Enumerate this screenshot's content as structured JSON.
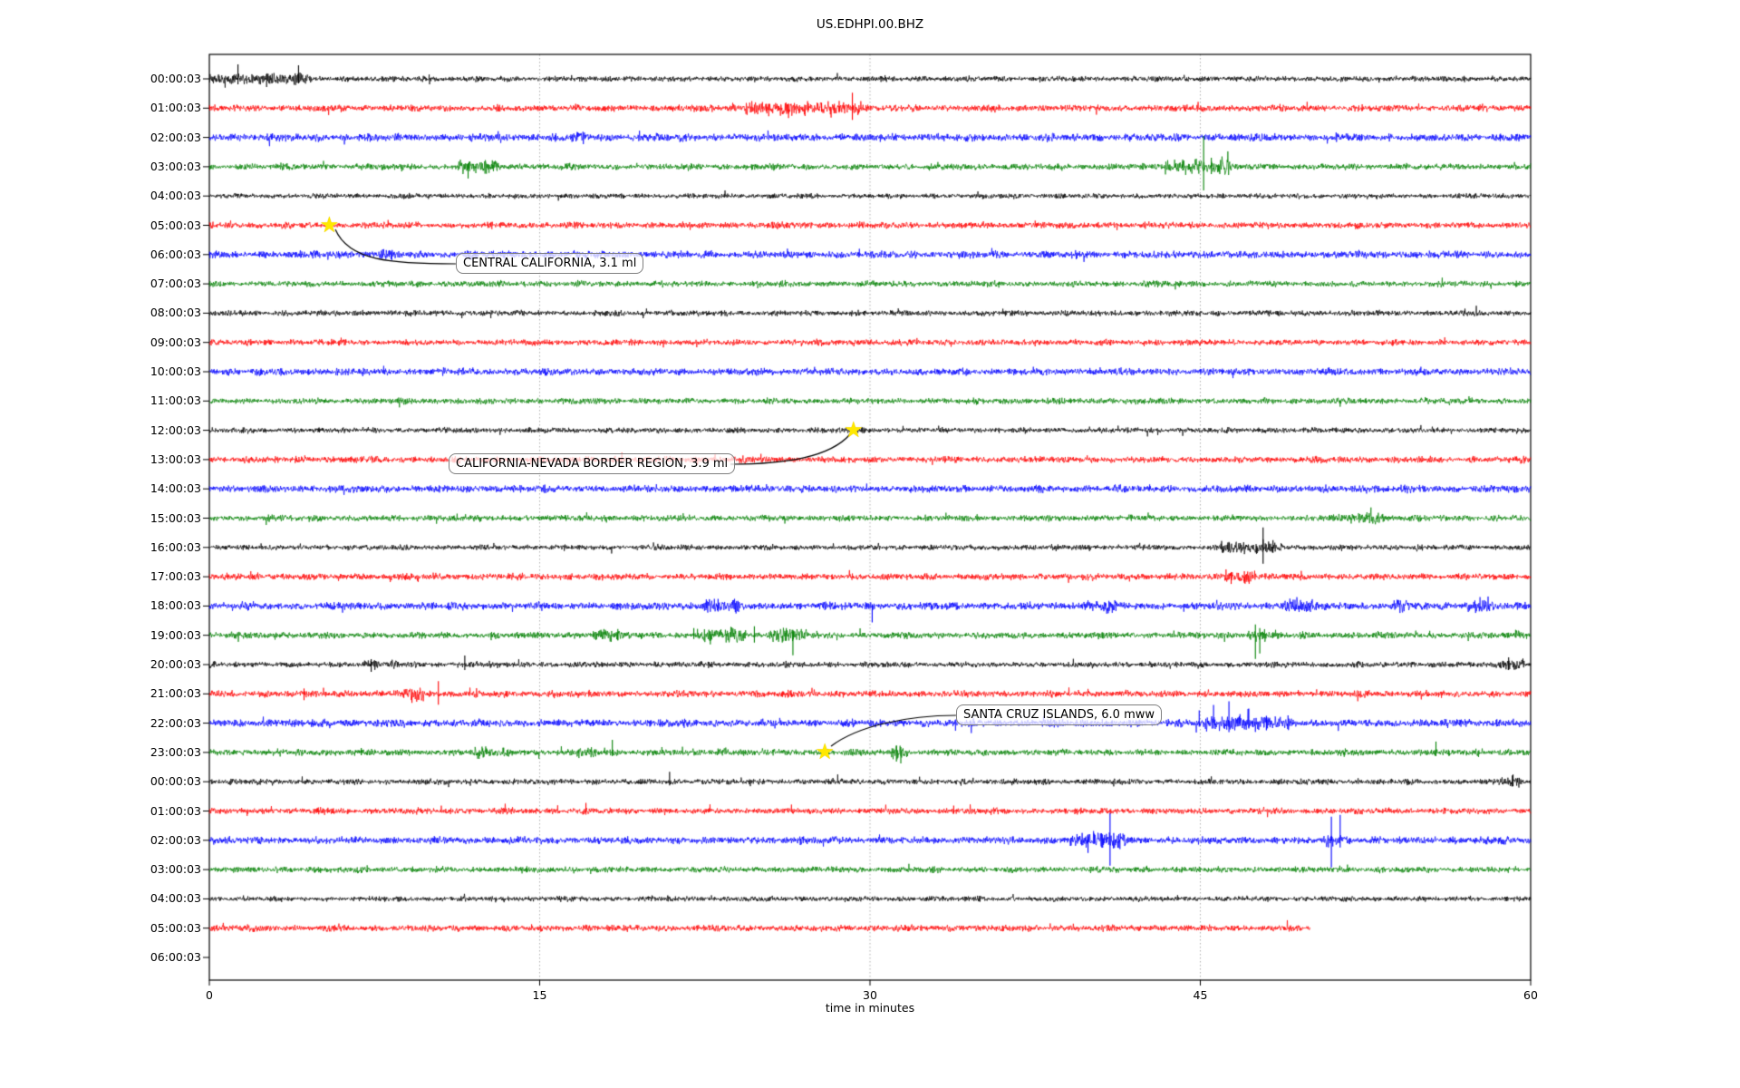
{
  "title": "US.EDHPI.00.BHZ",
  "chart_data": {
    "type": "line",
    "subtype": "seismogram-helicorder-dayplot",
    "station_code": "US.EDHPI.00.BHZ",
    "grid": "vertical-dotted",
    "star_glyph": "★",
    "star_color": "#ffe800",
    "x_axis": {
      "label": "time in minutes",
      "ticks": [
        0,
        15,
        30,
        45,
        60
      ],
      "xlim": [
        0,
        60
      ]
    },
    "trace_colors_cycle": [
      "#000000",
      "#ff0000",
      "#0000ff",
      "#008000"
    ],
    "rows": [
      {
        "label": "00:00:03",
        "color": "#000000",
        "amp": 2.4,
        "end": 60,
        "bursts": [
          [
            0,
            4.6,
            2.2
          ]
        ],
        "spikes": [
          [
            1.3,
            16,
            6
          ],
          [
            2.6,
            5,
            9
          ],
          [
            4.05,
            15,
            5
          ]
        ]
      },
      {
        "label": "01:00:03",
        "color": "#ff0000",
        "amp": 2.9,
        "end": 60,
        "bursts": [
          [
            24.3,
            29.6,
            2.2
          ]
        ],
        "spikes": [
          [
            25.4,
            4,
            9
          ],
          [
            26.3,
            5,
            11
          ],
          [
            27.8,
            6,
            4
          ],
          [
            28.6,
            8,
            5
          ],
          [
            29.2,
            17,
            13
          ]
        ]
      },
      {
        "label": "02:00:03",
        "color": "#0000ff",
        "amp": 3.3,
        "end": 60,
        "bursts": [
          [
            16.4,
            17.2,
            1.6
          ]
        ],
        "spikes": [
          [
            16.7,
            6,
            3
          ]
        ]
      },
      {
        "label": "03:00:03",
        "color": "#008000",
        "amp": 2.7,
        "end": 60,
        "bursts": [
          [
            11.3,
            13.2,
            1.9
          ],
          [
            43.4,
            46.4,
            2.6
          ]
        ],
        "spikes": [
          [
            11.75,
            4,
            13
          ],
          [
            12.1,
            3,
            7
          ],
          [
            44.2,
            8,
            4
          ],
          [
            45.15,
            34,
            26
          ],
          [
            45.5,
            10,
            8
          ]
        ]
      },
      {
        "label": "04:00:03",
        "color": "#000000",
        "amp": 2.2,
        "end": 60,
        "bursts": [],
        "spikes": []
      },
      {
        "label": "05:00:03",
        "color": "#ff0000",
        "amp": 2.8,
        "end": 60,
        "bursts": [],
        "spikes": []
      },
      {
        "label": "06:00:03",
        "color": "#0000ff",
        "amp": 3.2,
        "end": 60,
        "bursts": [
          [
            7.7,
            8.4,
            1.7
          ]
        ],
        "spikes": []
      },
      {
        "label": "07:00:03",
        "color": "#008000",
        "amp": 2.6,
        "end": 60,
        "bursts": [],
        "spikes": []
      },
      {
        "label": "08:00:03",
        "color": "#000000",
        "amp": 2.5,
        "end": 60,
        "bursts": [],
        "spikes": []
      },
      {
        "label": "09:00:03",
        "color": "#ff0000",
        "amp": 2.6,
        "end": 60,
        "bursts": [],
        "spikes": []
      },
      {
        "label": "10:00:03",
        "color": "#0000ff",
        "amp": 3.1,
        "end": 60,
        "bursts": [],
        "spikes": []
      },
      {
        "label": "11:00:03",
        "color": "#008000",
        "amp": 2.6,
        "end": 60,
        "bursts": [],
        "spikes": []
      },
      {
        "label": "12:00:03",
        "color": "#000000",
        "amp": 2.4,
        "end": 60,
        "bursts": [],
        "spikes": []
      },
      {
        "label": "13:00:03",
        "color": "#ff0000",
        "amp": 2.8,
        "end": 60,
        "bursts": [],
        "spikes": []
      },
      {
        "label": "14:00:03",
        "color": "#0000ff",
        "amp": 3.2,
        "end": 60,
        "bursts": [],
        "spikes": []
      },
      {
        "label": "15:00:03",
        "color": "#008000",
        "amp": 2.7,
        "end": 60,
        "bursts": [
          [
            51.7,
            53.3,
            2.2
          ]
        ],
        "spikes": []
      },
      {
        "label": "16:00:03",
        "color": "#000000",
        "amp": 2.4,
        "end": 60,
        "bursts": [
          [
            45.9,
            48.8,
            2.3
          ]
        ],
        "spikes": [
          [
            46.3,
            6,
            4
          ],
          [
            47.85,
            22,
            18
          ],
          [
            48.3,
            8,
            6
          ]
        ]
      },
      {
        "label": "17:00:03",
        "color": "#ff0000",
        "amp": 2.9,
        "end": 60,
        "bursts": [
          [
            46.1,
            47.5,
            2.6
          ]
        ],
        "spikes": [
          [
            46.4,
            5,
            8
          ],
          [
            47.0,
            6,
            7
          ]
        ]
      },
      {
        "label": "18:00:03",
        "color": "#0000ff",
        "amp": 3.3,
        "end": 60,
        "bursts": [
          [
            22.4,
            24.1,
            2.0
          ],
          [
            39.7,
            41.2,
            1.8
          ],
          [
            48.8,
            50.1,
            2.0
          ],
          [
            53.8,
            54.5,
            1.6
          ],
          [
            56.9,
            58.4,
            1.9
          ]
        ],
        "spikes": [
          [
            23.1,
            8,
            6
          ],
          [
            30.1,
            2,
            18
          ],
          [
            49.3,
            7,
            5
          ],
          [
            57.7,
            10,
            4
          ]
        ]
      },
      {
        "label": "19:00:03",
        "color": "#008000",
        "amp": 2.8,
        "end": 60,
        "bursts": [
          [
            17.4,
            18.8,
            1.8
          ],
          [
            22.4,
            24.4,
            2.2
          ],
          [
            25.4,
            27.1,
            2.4
          ],
          [
            47.2,
            48.0,
            2.0
          ],
          [
            59.3,
            60,
            1.8
          ]
        ],
        "spikes": [
          [
            18.55,
            7,
            5
          ],
          [
            22.0,
            8,
            4
          ],
          [
            22.75,
            4,
            10
          ],
          [
            24.75,
            10,
            8
          ],
          [
            26.2,
            8,
            6
          ],
          [
            26.5,
            6,
            22
          ],
          [
            47.5,
            12,
            26
          ],
          [
            47.7,
            8,
            20
          ]
        ]
      },
      {
        "label": "20:00:03",
        "color": "#000000",
        "amp": 2.5,
        "end": 60,
        "bursts": [
          [
            7.0,
            7.7,
            1.9
          ],
          [
            8.2,
            8.6,
            1.6
          ],
          [
            58.3,
            59.7,
            2.2
          ]
        ],
        "spikes": [
          [
            7.35,
            6,
            8
          ],
          [
            11.6,
            10,
            6
          ],
          [
            59.0,
            8,
            6
          ]
        ]
      },
      {
        "label": "21:00:03",
        "color": "#ff0000",
        "amp": 2.9,
        "end": 60,
        "bursts": [
          [
            8.8,
            9.8,
            2.3
          ]
        ],
        "spikes": [
          [
            4.3,
            6,
            7
          ],
          [
            9.2,
            5,
            10
          ],
          [
            10.4,
            14,
            12
          ]
        ]
      },
      {
        "label": "22:00:03",
        "color": "#0000ff",
        "amp": 3.3,
        "end": 60,
        "bursts": [
          [
            40.5,
            41.0,
            1.5
          ],
          [
            44.8,
            49.2,
            2.2
          ]
        ],
        "spikes": [
          [
            44.95,
            14,
            4
          ],
          [
            45.6,
            20,
            6
          ],
          [
            46.3,
            24,
            10
          ],
          [
            47.2,
            16,
            6
          ],
          [
            48.0,
            8,
            8
          ]
        ]
      },
      {
        "label": "23:00:03",
        "color": "#008000",
        "amp": 2.8,
        "end": 60,
        "bursts": [
          [
            12.0,
            12.6,
            1.8
          ],
          [
            13.1,
            13.6,
            1.7
          ],
          [
            16.7,
            17.6,
            1.8
          ],
          [
            23.1,
            23.6,
            1.8
          ],
          [
            30.9,
            31.7,
            2.2
          ]
        ],
        "spikes": [
          [
            6.9,
            5,
            3
          ],
          [
            18.3,
            14,
            4
          ],
          [
            31.2,
            8,
            10
          ],
          [
            31.4,
            6,
            12
          ],
          [
            55.7,
            12,
            4
          ]
        ]
      },
      {
        "label": "00:00:03",
        "color": "#000000",
        "amp": 2.5,
        "end": 60,
        "bursts": [
          [
            58.7,
            59.6,
            1.8
          ]
        ],
        "spikes": [
          [
            20.9,
            11,
            4
          ],
          [
            59.2,
            8,
            5
          ]
        ]
      },
      {
        "label": "01:00:03",
        "color": "#ff0000",
        "amp": 2.7,
        "end": 60,
        "bursts": [],
        "spikes": [
          [
            17.1,
            9,
            4
          ],
          [
            33.8,
            6,
            3
          ]
        ]
      },
      {
        "label": "02:00:03",
        "color": "#0000ff",
        "amp": 3.2,
        "end": 60,
        "bursts": [
          [
            39.1,
            41.6,
            2.3
          ],
          [
            50.6,
            51.8,
            1.8
          ]
        ],
        "spikes": [
          [
            39.9,
            4,
            14
          ],
          [
            40.9,
            30,
            28
          ],
          [
            50.95,
            26,
            30
          ],
          [
            51.35,
            28,
            8
          ]
        ]
      },
      {
        "label": "03:00:03",
        "color": "#008000",
        "amp": 2.6,
        "end": 60,
        "bursts": [],
        "spikes": []
      },
      {
        "label": "04:00:03",
        "color": "#000000",
        "amp": 2.3,
        "end": 60,
        "bursts": [],
        "spikes": []
      },
      {
        "label": "05:00:03",
        "color": "#ff0000",
        "amp": 2.8,
        "end": 50,
        "bursts": [],
        "spikes": []
      },
      {
        "label": "06:00:03",
        "color": "#0000ff",
        "amp": 0,
        "end": 0,
        "bursts": [],
        "spikes": []
      }
    ],
    "annotations": [
      {
        "text": "CENTRAL CALIFORNIA, 3.1 ml",
        "star_row": 5,
        "star_minute": 5.5
      },
      {
        "text": "CALIFORNIA-NEVADA BORDER REGION, 3.9 ml",
        "star_row": 12,
        "star_minute": 29.3
      },
      {
        "text": "SANTA CRUZ ISLANDS, 6.0 mww",
        "star_row": 23,
        "star_minute": 28.0
      }
    ]
  }
}
